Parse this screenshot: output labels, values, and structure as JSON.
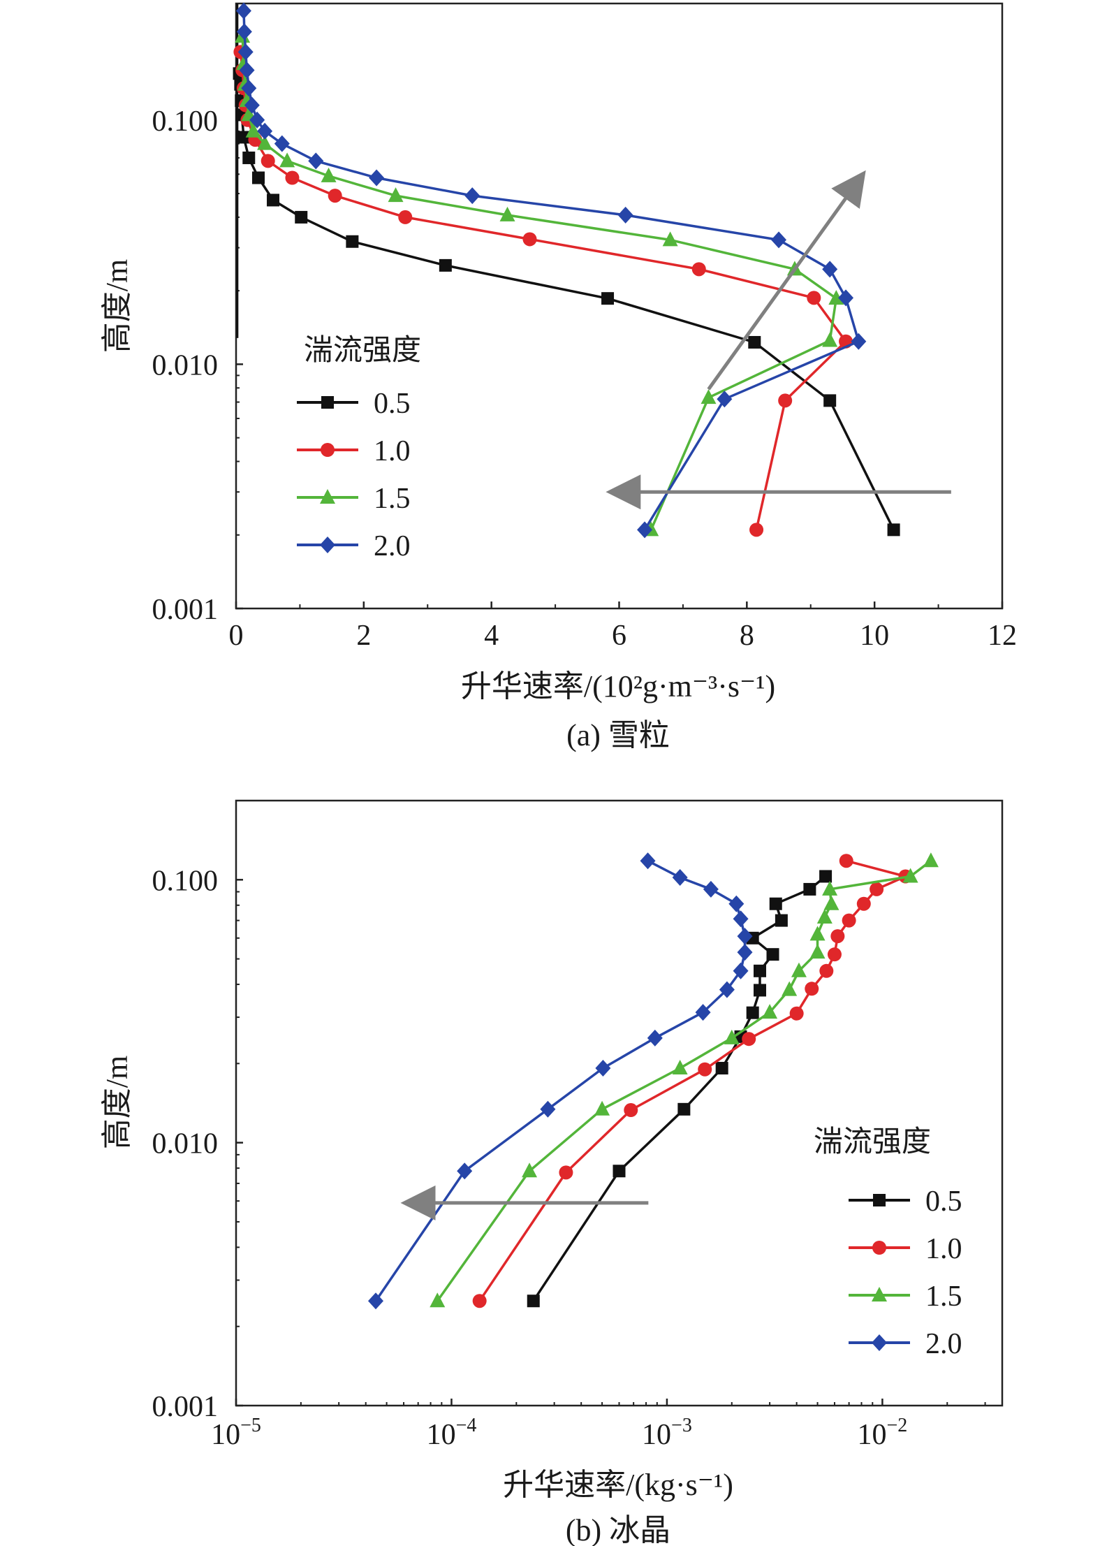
{
  "chart_data": [
    {
      "type": "line",
      "caption": "(a) 雪粒",
      "xlabel": "升华速率/(10²g·m⁻³·s⁻¹)",
      "ylabel": "高度/m",
      "x_scale": "linear",
      "y_scale": "log",
      "xlim": [
        0,
        12
      ],
      "ylim": [
        0.001,
        0.3
      ],
      "x_ticks": [
        0,
        2,
        4,
        6,
        8,
        10,
        12
      ],
      "x_tick_labels": [
        "0",
        "2",
        "4",
        "6",
        "8",
        "10",
        "12"
      ],
      "y_ticks": [
        0.001,
        0.01,
        0.1
      ],
      "y_tick_labels": [
        "0.001",
        "0.010",
        "0.100"
      ],
      "legend_title": "湍流强度",
      "legend_position": "middle-left",
      "series": [
        {
          "name": "0.5",
          "color": "#111111",
          "marker": "square",
          "points": [
            [
              0.05,
              0.155
            ],
            [
              0.07,
              0.14
            ],
            [
              0.08,
              0.12
            ],
            [
              0.09,
              0.105
            ],
            [
              0.12,
              0.085
            ],
            [
              0.2,
              0.07
            ],
            [
              0.35,
              0.058
            ],
            [
              0.58,
              0.047
            ],
            [
              1.02,
              0.04
            ],
            [
              1.82,
              0.0318
            ],
            [
              3.28,
              0.0254
            ],
            [
              5.82,
              0.0186
            ],
            [
              8.12,
              0.0123
            ],
            [
              9.3,
              0.0071
            ],
            [
              10.3,
              0.0021
            ]
          ]
        },
        {
          "name": "1.0",
          "color": "#e0272a",
          "marker": "circle",
          "points": [
            [
              0.07,
              0.19
            ],
            [
              0.1,
              0.16
            ],
            [
              0.12,
              0.135
            ],
            [
              0.15,
              0.115
            ],
            [
              0.18,
              0.1
            ],
            [
              0.3,
              0.083
            ],
            [
              0.5,
              0.068
            ],
            [
              0.88,
              0.058
            ],
            [
              1.55,
              0.049
            ],
            [
              2.65,
              0.04
            ],
            [
              4.6,
              0.0325
            ],
            [
              7.25,
              0.0245
            ],
            [
              9.05,
              0.0187
            ],
            [
              9.55,
              0.0124
            ],
            [
              8.6,
              0.0071
            ],
            [
              8.15,
              0.0021
            ]
          ]
        },
        {
          "name": "1.5",
          "color": "#53b53a",
          "marker": "triangle",
          "points": [
            [
              0.1,
              0.22
            ],
            [
              0.12,
              0.17
            ],
            [
              0.14,
              0.14
            ],
            [
              0.17,
              0.12
            ],
            [
              0.2,
              0.105
            ],
            [
              0.27,
              0.09
            ],
            [
              0.45,
              0.08
            ],
            [
              0.8,
              0.068
            ],
            [
              1.45,
              0.059
            ],
            [
              2.5,
              0.049
            ],
            [
              4.25,
              0.0408
            ],
            [
              6.8,
              0.0323
            ],
            [
              8.75,
              0.0245
            ],
            [
              9.4,
              0.0186
            ],
            [
              9.3,
              0.0125
            ],
            [
              7.4,
              0.0073
            ],
            [
              6.5,
              0.0021
            ]
          ]
        },
        {
          "name": "2.0",
          "color": "#2645a8",
          "marker": "diamond",
          "points": [
            [
              0.12,
              0.28
            ],
            [
              0.13,
              0.23
            ],
            [
              0.15,
              0.19
            ],
            [
              0.17,
              0.16
            ],
            [
              0.2,
              0.135
            ],
            [
              0.25,
              0.115
            ],
            [
              0.33,
              0.1
            ],
            [
              0.45,
              0.09
            ],
            [
              0.72,
              0.08
            ],
            [
              1.25,
              0.068
            ],
            [
              2.2,
              0.058
            ],
            [
              3.7,
              0.049
            ],
            [
              6.1,
              0.0408
            ],
            [
              8.5,
              0.0323
            ],
            [
              9.3,
              0.0245
            ],
            [
              9.55,
              0.0187
            ],
            [
              9.75,
              0.0124
            ],
            [
              7.65,
              0.0072
            ],
            [
              6.4,
              0.0021
            ]
          ]
        }
      ],
      "annotations": [
        {
          "type": "arrow",
          "color": "#808080",
          "from": [
            11.2,
            0.003
          ],
          "to": [
            5.9,
            0.003
          ],
          "meaning": "left arrow"
        },
        {
          "type": "arrow",
          "color": "#808080",
          "from": [
            7.4,
            0.0079
          ],
          "to": [
            9.8,
            0.059
          ],
          "meaning": "up-right arrow"
        }
      ],
      "extra_marks": [
        {
          "type": "vertical-line",
          "color": "#111111",
          "x": 0.02,
          "y_from": 0.0128,
          "y_to": 0.3
        }
      ]
    },
    {
      "type": "line",
      "caption": "(b) 冰晶",
      "xlabel": "升华速率/(kg·s⁻¹)",
      "ylabel": "高度/m",
      "x_scale": "log",
      "y_scale": "log",
      "xlim": [
        1e-05,
        0.036
      ],
      "ylim": [
        0.001,
        0.2
      ],
      "x_ticks": [
        1e-05,
        0.0001,
        0.001,
        0.01
      ],
      "x_tick_bases": [
        "10",
        "10",
        "10",
        "10"
      ],
      "x_tick_exponents": [
        "−5",
        "−4",
        "−3",
        "−2"
      ],
      "y_ticks": [
        0.001,
        0.01,
        0.1
      ],
      "y_tick_labels": [
        "0.001",
        "0.010",
        "0.100"
      ],
      "legend_title": "湍流强度",
      "legend_position": "lower-right",
      "series": [
        {
          "name": "0.5",
          "color": "#111111",
          "marker": "square",
          "points": [
            [
              0.00545,
              0.103
            ],
            [
              0.0046,
              0.092
            ],
            [
              0.0032,
              0.081
            ],
            [
              0.0034,
              0.07
            ],
            [
              0.0025,
              0.06
            ],
            [
              0.0031,
              0.052
            ],
            [
              0.0027,
              0.045
            ],
            [
              0.0027,
              0.038
            ],
            [
              0.0025,
              0.0312
            ],
            [
              0.0022,
              0.0253
            ],
            [
              0.0018,
              0.0192
            ],
            [
              0.0012,
              0.0134
            ],
            [
              0.0006,
              0.0078
            ],
            [
              0.00024,
              0.0025
            ]
          ]
        },
        {
          "name": "1.0",
          "color": "#e0272a",
          "marker": "circle",
          "points": [
            [
              0.0068,
              0.118
            ],
            [
              0.0128,
              0.103
            ],
            [
              0.0094,
              0.092
            ],
            [
              0.0082,
              0.081
            ],
            [
              0.007,
              0.07
            ],
            [
              0.0062,
              0.061
            ],
            [
              0.006,
              0.052
            ],
            [
              0.0055,
              0.045
            ],
            [
              0.0047,
              0.0385
            ],
            [
              0.004,
              0.031
            ],
            [
              0.0024,
              0.0248
            ],
            [
              0.0015,
              0.019
            ],
            [
              0.00068,
              0.0133
            ],
            [
              0.00034,
              0.0077
            ],
            [
              0.000135,
              0.0025
            ]
          ]
        },
        {
          "name": "1.5",
          "color": "#53b53a",
          "marker": "triangle",
          "points": [
            [
              0.0168,
              0.118
            ],
            [
              0.0135,
              0.103
            ],
            [
              0.0057,
              0.092
            ],
            [
              0.0058,
              0.081
            ],
            [
              0.0054,
              0.072
            ],
            [
              0.005,
              0.062
            ],
            [
              0.005,
              0.053
            ],
            [
              0.0041,
              0.045
            ],
            [
              0.0037,
              0.0382
            ],
            [
              0.003,
              0.0313
            ],
            [
              0.002,
              0.025
            ],
            [
              0.00115,
              0.0192
            ],
            [
              0.0005,
              0.0134
            ],
            [
              0.00023,
              0.0078
            ],
            [
              8.6e-05,
              0.0025
            ]
          ]
        },
        {
          "name": "2.0",
          "color": "#2645a8",
          "marker": "diamond",
          "points": [
            [
              0.000815,
              0.118
            ],
            [
              0.00115,
              0.102
            ],
            [
              0.0016,
              0.092
            ],
            [
              0.0021,
              0.081
            ],
            [
              0.0022,
              0.071
            ],
            [
              0.0023,
              0.061
            ],
            [
              0.0023,
              0.053
            ],
            [
              0.0022,
              0.045
            ],
            [
              0.0019,
              0.0382
            ],
            [
              0.00147,
              0.0313
            ],
            [
              0.00088,
              0.025
            ],
            [
              0.000505,
              0.0192
            ],
            [
              0.00028,
              0.0134
            ],
            [
              0.000115,
              0.0078
            ],
            [
              4.45e-05,
              0.0025
            ]
          ]
        }
      ],
      "annotations": [
        {
          "type": "arrow",
          "color": "#808080",
          "from": [
            0.00082,
            0.0059
          ],
          "to": [
            6.25e-05,
            0.0059
          ],
          "meaning": "left arrow"
        }
      ]
    }
  ]
}
